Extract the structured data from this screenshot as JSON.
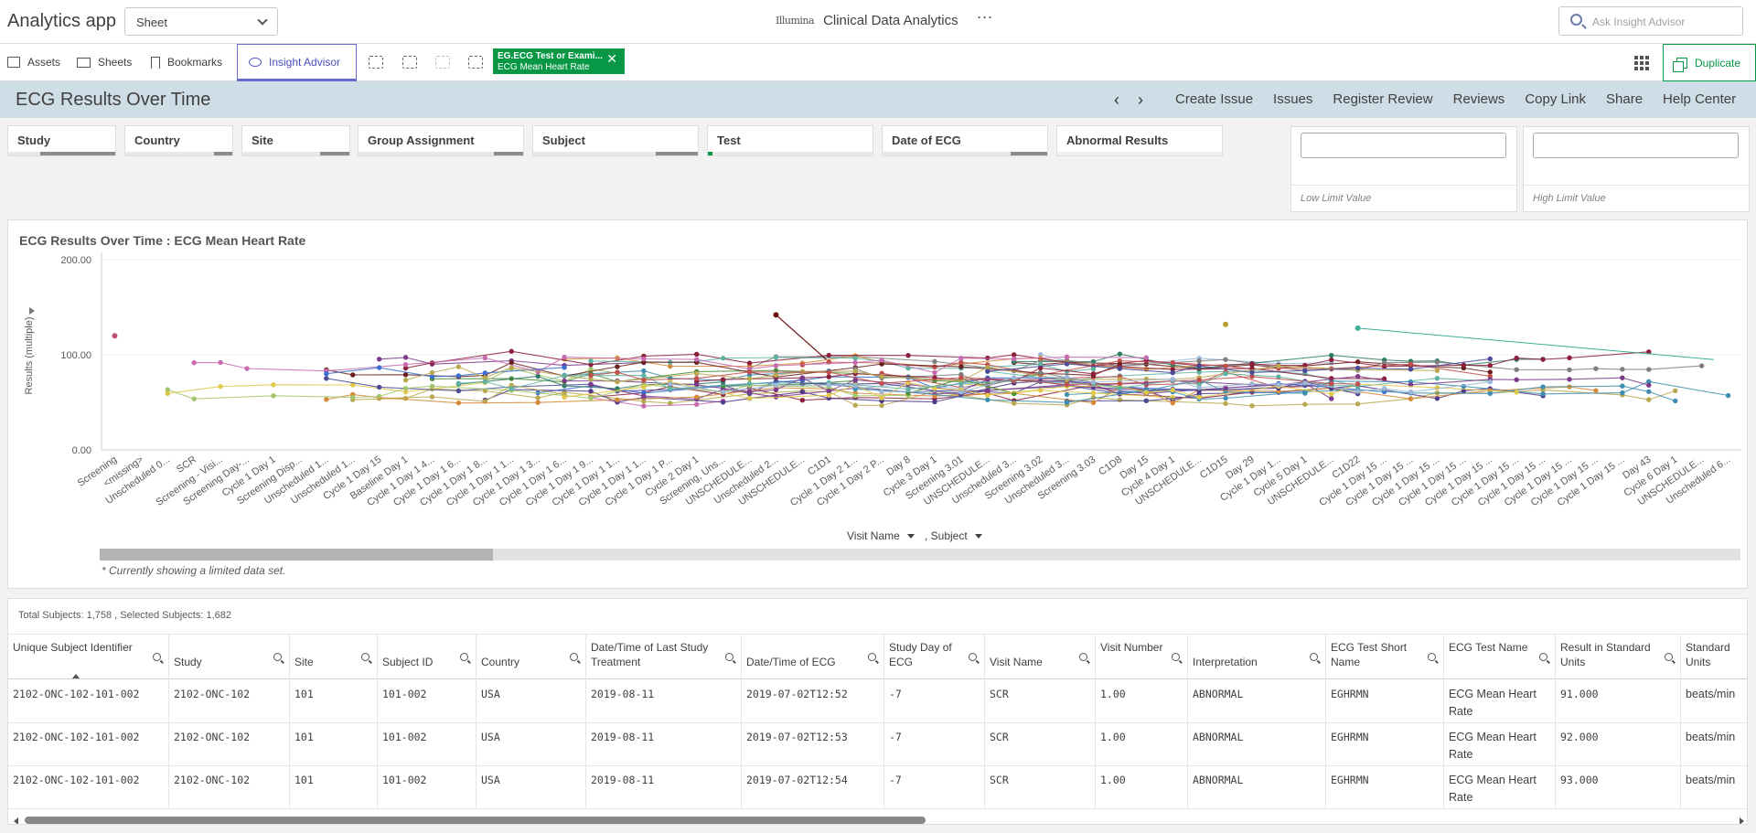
{
  "app": {
    "title": "Analytics app",
    "sheet_select": "Sheet",
    "brand_logo": "Illumina",
    "brand_title": "Clinical Data Analytics",
    "more": "···",
    "ask_placeholder": "Ask Insight Advisor"
  },
  "toolbar": {
    "assets": "Assets",
    "sheets": "Sheets",
    "bookmarks": "Bookmarks",
    "insight": "Insight Advisor",
    "duplicate": "Duplicate"
  },
  "selection_chip": {
    "field": "EG.ECG Test or Exami...",
    "value": "ECG Mean Heart Rate",
    "close": "✕"
  },
  "sheet": {
    "title": "ECG Results Over Time",
    "prev": "‹",
    "next": "›",
    "links": [
      "Create Issue",
      "Issues",
      "Register Review",
      "Reviews",
      "Copy Link",
      "Share",
      "Help Center"
    ]
  },
  "filters": [
    "Study",
    "Country",
    "Site",
    "Group Assignment",
    "Subject",
    "Test",
    "Date of ECG",
    "Abnormal Results"
  ],
  "limits": {
    "low_label": "Low Limit Value",
    "high_label": "High Limit Value",
    "low_value": "",
    "high_value": ""
  },
  "chart_data": {
    "type": "line",
    "title": "ECG Results Over Time : ECG Mean Heart Rate",
    "ylabel": "Results (multiple)",
    "ylim": [
      0,
      200
    ],
    "yticks": [
      "200.00",
      "100.00",
      "0.00"
    ],
    "categories": [
      "Screening",
      "<missing>",
      "Unscheduled 0...",
      "SCR",
      "Screening - Visi...",
      "Screening Day-...",
      "Cycle 1 Day 1",
      "Screening Disp...",
      "Unscheduled 1...",
      "Unscheduled 1...",
      "Cycle 1 Day 15",
      "Baseline Day 1",
      "Cycle 1 Day 1 4...",
      "Cycle 1 Day 1 6...",
      "Cycle 1 Day 1 8...",
      "Cycle 1 Day 1 1...",
      "Cycle 1 Day 1 3...",
      "Cycle 1 Day 1 6...",
      "Cycle 1 Day 1 9...",
      "Cycle 1 Day 1 1...",
      "Cycle 1 Day 1 1...",
      "Cycle 1 Day 1 P...",
      "Cycle 2 Day 1",
      "Screening, Uns...",
      "UNSCHEDULE...",
      "Unscheduled 2...",
      "UNSCHEDULE...",
      "C1D1",
      "Cycle 1 Day 2 1...",
      "Cycle 1 Day 2 P...",
      "Day 8",
      "Cycle 3 Day 1",
      "Screening 3.01",
      "UNSCHEDULE...",
      "Unscheduled 3...",
      "Screening 3.02",
      "Unscheduled 3...",
      "Screening 3.03",
      "C1D8",
      "Day 15",
      "Cycle 4 Day 1",
      "UNSCHEDULE...",
      "C1D15",
      "Day 29",
      "Cycle 1 Day 1...",
      "Cycle 5 Day 1",
      "UNSCHEDULE...",
      "C1D22",
      "Cycle 1 Day 15 ...",
      "Cycle 1 Day 15 ...",
      "Cycle 1 Day 15 ...",
      "Cycle 1 Day 15 ...",
      "Cycle 1 Day 15 ...",
      "Cycle 1 Day 15 ...",
      "Cycle 1 Day 15 ...",
      "Cycle 1 Day 15 ...",
      "Cycle 1 Day 15 ...",
      "Cycle 1 Day 15 ...",
      "Day 43",
      "Cycle 6 Day 1",
      "UNSCHEDULE...",
      "Unscheduled 6..."
    ],
    "series_note": "",
    "outliers": [
      {
        "x": "Screening",
        "y": 120
      },
      {
        "x": "Unscheduled 2...",
        "y": 142
      },
      {
        "x": "C1D15",
        "y": 132
      },
      {
        "x": "C1D22",
        "y": 128
      }
    ],
    "dimension_1": "Visit Name",
    "dimension_2": ", Subject",
    "scroll_note": "* Currently showing a limited data set."
  },
  "table": {
    "totals": "Total Subjects: 1,758 , Selected Subjects: 1,682",
    "columns": [
      "Unique Subject Identifier",
      "Study",
      "Site",
      "Subject ID",
      "Country",
      "Date/Time of Last Study Treatment",
      "Date/Time of ECG",
      "Study Day of ECG",
      "Visit Name",
      "Visit Number",
      "Interpretation",
      "ECG Test Short Name",
      "ECG Test Name",
      "Result in Standard Units",
      "Standard Units"
    ],
    "rows": [
      [
        "2102-ONC-102-101-002",
        "2102-ONC-102",
        "101",
        "101-002",
        "USA",
        "2019-08-11",
        "2019-07-02T12:52",
        "-7",
        "SCR",
        "1.00",
        "ABNORMAL",
        "EGHRMN",
        "ECG Mean Heart Rate",
        "91.000",
        "beats/min"
      ],
      [
        "2102-ONC-102-101-002",
        "2102-ONC-102",
        "101",
        "101-002",
        "USA",
        "2019-08-11",
        "2019-07-02T12:53",
        "-7",
        "SCR",
        "1.00",
        "ABNORMAL",
        "EGHRMN",
        "ECG Mean Heart Rate",
        "92.000",
        "beats/min"
      ],
      [
        "2102-ONC-102-101-002",
        "2102-ONC-102",
        "101",
        "101-002",
        "USA",
        "2019-08-11",
        "2019-07-02T12:54",
        "-7",
        "SCR",
        "1.00",
        "ABNORMAL",
        "EGHRMN",
        "ECG Mean Heart Rate",
        "93.000",
        "beats/min"
      ]
    ]
  }
}
